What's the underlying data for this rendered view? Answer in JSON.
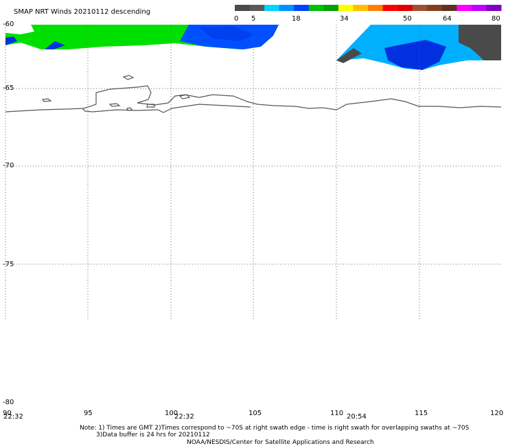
{
  "title": "SMAP NRT Winds  20210112 descending",
  "colorbar": {
    "labels": [
      "0",
      "5",
      "18",
      "34",
      "50",
      "64",
      "80"
    ],
    "colors": [
      "#4a4a4a",
      "#5a5a5a",
      "#00d4ff",
      "#0090ff",
      "#0040ff",
      "#00c000",
      "#00a000",
      "#ffff00",
      "#ffc000",
      "#ff8000",
      "#ff0000",
      "#e00000",
      "#a05030",
      "#804020",
      "#603020",
      "#ff00ff",
      "#c000ff",
      "#8000c0"
    ]
  },
  "lat_labels": [
    "-60",
    "-65",
    "-70",
    "-75",
    "-80"
  ],
  "lon_labels": [
    "90",
    "95",
    "100",
    "105",
    "110",
    "115",
    "120"
  ],
  "time_labels": [
    "22:32",
    "22:32",
    "20:54"
  ],
  "note_line1": "Note: 1) Times are GMT 2)Times correspond to ~70S at right swath edge - time is right swath for overlapping swaths at ~70S",
  "note_line2": "3)Data buffer is 24 hrs for 20210112",
  "credit": "NOAA/NESDIS/Center for Satellite Applications and Research",
  "colors": {
    "green": "#00e000",
    "blue": "#0050ff",
    "cyan": "#00b0ff",
    "dark_blue": "#0020e0",
    "gray": "#4a4a4a",
    "coast": "#555555"
  }
}
